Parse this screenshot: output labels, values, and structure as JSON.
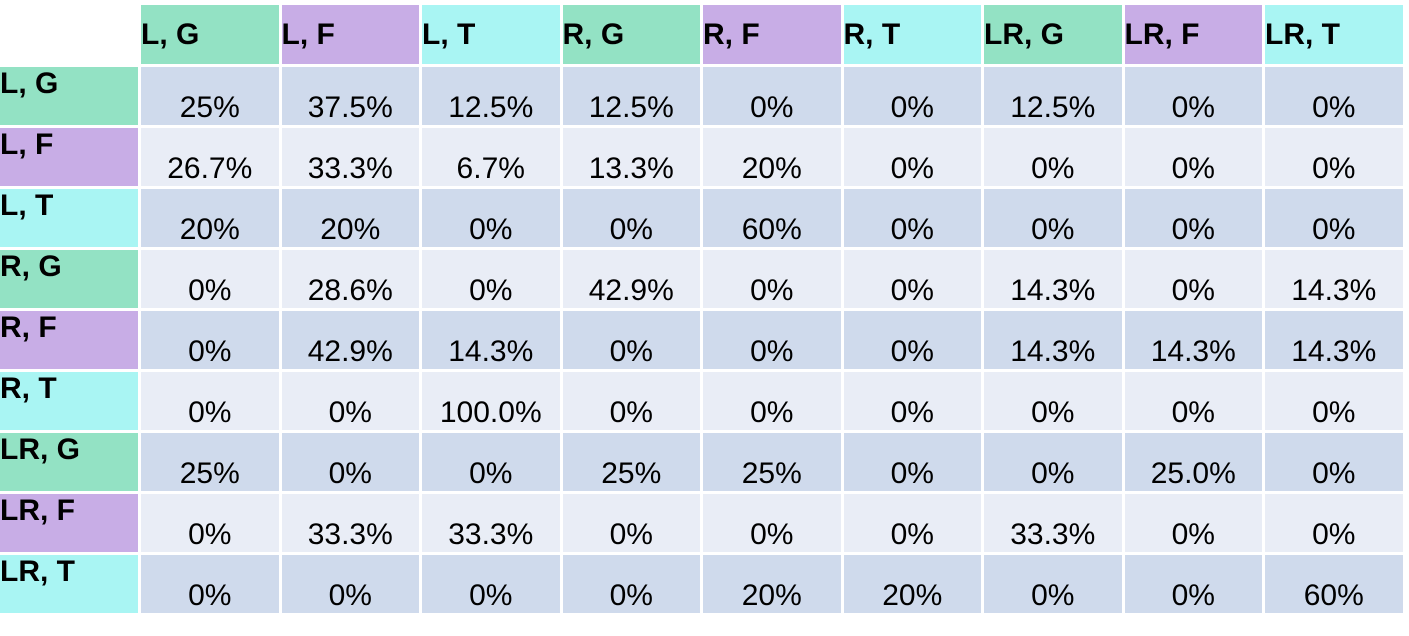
{
  "colors": {
    "G": "#93e2c4",
    "F": "#c8ade6",
    "T": "#a9f5f3",
    "row_dark": "#cfdaec",
    "row_light": "#e9edf6"
  },
  "chart_data": {
    "type": "table",
    "columns": [
      "L, G",
      "L, F",
      "L, T",
      "R, G",
      "R, F",
      "R, T",
      "LR, G",
      "LR, F",
      "LR, T"
    ],
    "rows": [
      {
        "label": "L, G",
        "values": [
          "25%",
          "37.5%",
          "12.5%",
          "12.5%",
          "0%",
          "0%",
          "12.5%",
          "0%",
          "0%"
        ]
      },
      {
        "label": "L, F",
        "values": [
          "26.7%",
          "33.3%",
          "6.7%",
          "13.3%",
          "20%",
          "0%",
          "0%",
          "0%",
          "0%"
        ]
      },
      {
        "label": "L, T",
        "values": [
          "20%",
          "20%",
          "0%",
          "0%",
          "60%",
          "0%",
          "0%",
          "0%",
          "0%"
        ]
      },
      {
        "label": "R, G",
        "values": [
          "0%",
          "28.6%",
          "0%",
          "42.9%",
          "0%",
          "0%",
          "14.3%",
          "0%",
          "14.3%"
        ]
      },
      {
        "label": "R, F",
        "values": [
          "0%",
          "42.9%",
          "14.3%",
          "0%",
          "0%",
          "0%",
          "14.3%",
          "14.3%",
          "14.3%"
        ]
      },
      {
        "label": "R, T",
        "values": [
          "0%",
          "0%",
          "100.0%",
          "0%",
          "0%",
          "0%",
          "0%",
          "0%",
          "0%"
        ]
      },
      {
        "label": "LR, G",
        "values": [
          "25%",
          "0%",
          "0%",
          "25%",
          "25%",
          "0%",
          "0%",
          "25.0%",
          "0%"
        ]
      },
      {
        "label": "LR, F",
        "values": [
          "0%",
          "33.3%",
          "33.3%",
          "0%",
          "0%",
          "0%",
          "33.3%",
          "0%",
          "0%"
        ]
      },
      {
        "label": "LR, T",
        "values": [
          "0%",
          "0%",
          "0%",
          "0%",
          "20%",
          "20%",
          "0%",
          "0%",
          "60%"
        ]
      }
    ]
  }
}
